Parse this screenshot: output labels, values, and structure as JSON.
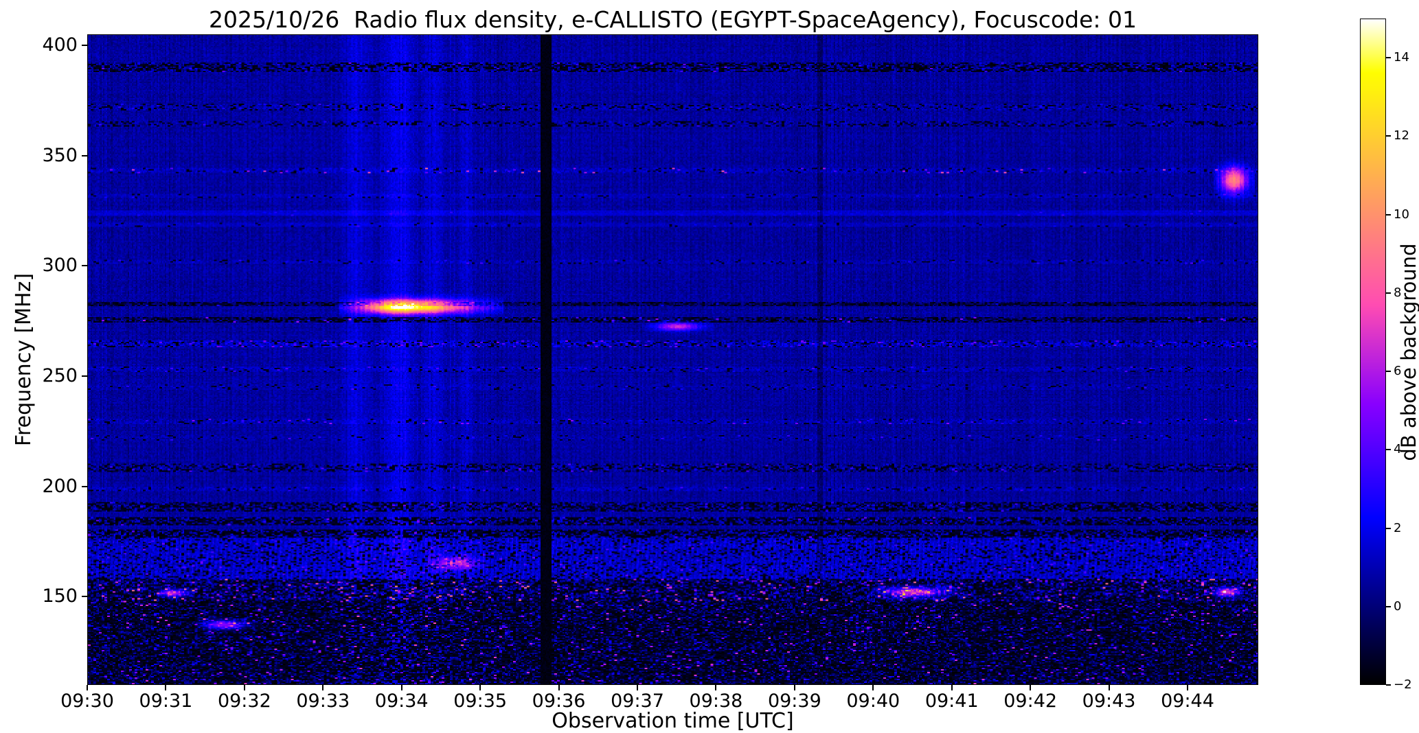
{
  "figure": {
    "background_color": "#ffffff",
    "text_color": "#000000"
  },
  "chart_data": {
    "type": "heatmap",
    "variant": "radio-spectrogram",
    "title": "2025/10/26  Radio flux density, e-CALLISTO (EGYPT-SpaceAgency), Focuscode: 01",
    "xlabel": "Observation time [UTC]",
    "ylabel": "Frequency [MHz]",
    "x_start": "09:30:00",
    "x_end": "09:44:54",
    "duration_s": 894,
    "tick_interval_s": 60,
    "x_ticks": [
      "09:30",
      "09:31",
      "09:32",
      "09:33",
      "09:34",
      "09:35",
      "09:36",
      "09:37",
      "09:38",
      "09:39",
      "09:40",
      "09:41",
      "09:42",
      "09:43",
      "09:44"
    ],
    "ylim": [
      110,
      405
    ],
    "y_ticks": [
      400,
      350,
      300,
      250,
      200,
      150
    ],
    "grid": false,
    "colorbar": {
      "label": "dB above background",
      "colormap": "gnuplot2",
      "vmin": -2,
      "vmax": 15,
      "ticks": [
        {
          "v": 14,
          "label": "14"
        },
        {
          "v": 12,
          "label": "12"
        },
        {
          "v": 10,
          "label": "10"
        },
        {
          "v": 8,
          "label": "8"
        },
        {
          "v": 6,
          "label": "6"
        },
        {
          "v": 4,
          "label": "4"
        },
        {
          "v": 2,
          "label": "2"
        },
        {
          "v": 0,
          "label": "0"
        },
        {
          "v": -2,
          "label": "−2"
        }
      ]
    },
    "background": {
      "base_db": 0.6,
      "noise_db": 0.5,
      "column_noise_db": 0.3
    },
    "bands": [
      {
        "f0": 388,
        "f1": 392.5,
        "base": 0.5,
        "noise": 1.1,
        "darkp": 0.45,
        "brightp": 0.05,
        "bmin": 2,
        "bmax": 4.5
      },
      {
        "f0": 371,
        "f1": 374,
        "base": 0.75,
        "noise": 0.8,
        "darkp": 0.2,
        "brightp": 0.05,
        "bmin": 1.5,
        "bmax": 3.5
      },
      {
        "f0": 363,
        "f1": 366,
        "base": 0.75,
        "noise": 0.8,
        "darkp": 0.25,
        "brightp": 0.05,
        "bmin": 1.5,
        "bmax": 3.5
      },
      {
        "f0": 342,
        "f1": 344.5,
        "base": 1.1,
        "noise": 0.7,
        "darkp": 0.1,
        "brightp": 0.05,
        "bmin": 2,
        "bmax": 8.5
      },
      {
        "f0": 331,
        "f1": 333,
        "base": 1.0,
        "noise": 0.5,
        "darkp": 0.08,
        "brightp": 0.02,
        "bmin": 1.5,
        "bmax": 3
      },
      {
        "f0": 323,
        "f1": 325.5,
        "base": 1.5,
        "noise": 0.4,
        "darkp": 0,
        "brightp": 0.02,
        "bmin": 2,
        "bmax": 3.5
      },
      {
        "f0": 318,
        "f1": 320,
        "base": 1.2,
        "noise": 0.4,
        "darkp": 0.05,
        "brightp": 0.02,
        "bmin": 1.5,
        "bmax": 3
      },
      {
        "f0": 301,
        "f1": 303,
        "base": 0.9,
        "noise": 0.6,
        "darkp": 0.1,
        "brightp": 0.03,
        "bmin": 1.5,
        "bmax": 4
      },
      {
        "f0": 281.5,
        "f1": 283.5,
        "base": -0.3,
        "noise": 0.9,
        "darkp": 0.4,
        "brightp": 0.03,
        "bmin": 1,
        "bmax": 3
      },
      {
        "f0": 274,
        "f1": 276.5,
        "base": 0.0,
        "noise": 1.0,
        "darkp": 0.45,
        "brightp": 0.06,
        "bmin": 2,
        "bmax": 6
      },
      {
        "f0": 263,
        "f1": 266.5,
        "base": 1.0,
        "noise": 1.1,
        "darkp": 0.15,
        "brightp": 0.15,
        "bmin": 2,
        "bmax": 5
      },
      {
        "f0": 252,
        "f1": 254.5,
        "base": 0.9,
        "noise": 0.7,
        "darkp": 0.08,
        "brightp": 0.05,
        "bmin": 1.5,
        "bmax": 4
      },
      {
        "f0": 244,
        "f1": 246,
        "base": 0.85,
        "noise": 0.6,
        "darkp": 0.08,
        "brightp": 0.03,
        "bmin": 1.5,
        "bmax": 3.5
      },
      {
        "f0": 228.5,
        "f1": 231,
        "base": 0.9,
        "noise": 0.7,
        "darkp": 0.08,
        "brightp": 0.05,
        "bmin": 2,
        "bmax": 5.5
      },
      {
        "f0": 221,
        "f1": 223,
        "base": 0.85,
        "noise": 0.6,
        "darkp": 0.06,
        "brightp": 0.03,
        "bmin": 1.5,
        "bmax": 4
      },
      {
        "f0": 206.5,
        "f1": 210,
        "base": 0.6,
        "noise": 1.0,
        "darkp": 0.3,
        "brightp": 0.07,
        "bmin": 1.5,
        "bmax": 4.5
      },
      {
        "f0": 197.5,
        "f1": 199.5,
        "base": 0.9,
        "noise": 0.7,
        "darkp": 0.1,
        "brightp": 0.05,
        "bmin": 1.5,
        "bmax": 4
      },
      {
        "f0": 188.5,
        "f1": 192.5,
        "base": 0.4,
        "noise": 1.2,
        "darkp": 0.45,
        "brightp": 0.1,
        "bmin": 1.5,
        "bmax": 4
      },
      {
        "f0": 182.5,
        "f1": 186,
        "base": 0.5,
        "noise": 1.4,
        "darkp": 0.5,
        "brightp": 0.06,
        "bmin": 1.5,
        "bmax": 5
      },
      {
        "f0": 176.5,
        "f1": 180.5,
        "base": 0.6,
        "noise": 1.4,
        "darkp": 0.55,
        "brightp": 0.06,
        "bmin": 1.5,
        "bmax": 5
      },
      {
        "f0": 158,
        "f1": 176.5,
        "base": 1.4,
        "noise": 0.8,
        "darkp": 0.18,
        "brightp": 0.05,
        "bmin": 2,
        "bmax": 4.5,
        "stripes": 0.5
      },
      {
        "f0": 148,
        "f1": 158,
        "base": 0.3,
        "noise": 1.4,
        "darkp": 0.45,
        "brightp": 0.16,
        "bmin": 2.5,
        "bmax": 9
      },
      {
        "f0": 110,
        "f1": 148,
        "base": -0.2,
        "noise": 1.3,
        "darkp": 0.55,
        "brightp": 0.11,
        "bmin": 2,
        "bmax": 7
      }
    ],
    "events": [
      {
        "type": "bright_column",
        "t": 205,
        "width": 12,
        "add": 0.9,
        "note": "faint full-band enhancement 09:33:25"
      },
      {
        "type": "bright_column",
        "t": 238,
        "width": 16,
        "add": 1.2,
        "note": "full-band enhancement 09:33:58"
      },
      {
        "type": "bright_column",
        "t": 265,
        "width": 10,
        "add": 0.7,
        "note": "enhancement 09:34:25"
      },
      {
        "type": "bright_column",
        "t": 290,
        "width": 7,
        "add": 0.5,
        "note": "enhancement 09:34:50"
      },
      {
        "type": "bright_column",
        "t": 245,
        "width": 150,
        "add": 0.2,
        "note": "broad brightening 09:33-09:36"
      },
      {
        "type": "dark_column",
        "t": 350,
        "width": 8,
        "set": -1.7,
        "note": "black data-gap stripe ~09:35:50"
      },
      {
        "type": "dark_column",
        "t": 560,
        "width": 4,
        "add": -0.8,
        "note": "faint dark stripe ~09:39:20"
      },
      {
        "type": "dark_column",
        "t": 756,
        "width": 3,
        "add": -0.5,
        "note": "very faint dark stripe ~09:42:36"
      }
    ],
    "bursts": [
      {
        "f": 281.5,
        "sf": 2.2,
        "t0": 192,
        "t1": 318,
        "tp": 240,
        "peak": 14,
        "dash": 0.35,
        "note": "bright narrowband emission ~281 MHz 09:33:12-09:35:18, white-hot peak ~09:34"
      },
      {
        "f": 339,
        "sf": 4,
        "t0": 860,
        "t1": 892,
        "tp": 876,
        "peak": 9,
        "dash": 0.5,
        "note": "pink RFI cluster ~335-343 MHz near 09:44:30"
      },
      {
        "f": 137,
        "sf": 1.4,
        "t0": 82,
        "t1": 128,
        "tp": 103,
        "peak": 7,
        "dash": 0.4,
        "note": "magenta streak ~137 MHz near 09:31:40"
      },
      {
        "f": 272.5,
        "sf": 1.3,
        "t0": 425,
        "t1": 478,
        "tp": 450,
        "peak": 6,
        "dash": 0.6,
        "note": "bright dashes ~272 MHz 09:37-09:38"
      },
      {
        "f": 152,
        "sf": 1.6,
        "t0": 598,
        "t1": 668,
        "tp": 630,
        "peak": 8,
        "dash": 0.55,
        "note": "pink speckle run ~152 MHz 09:40-09:41"
      },
      {
        "f": 151.5,
        "sf": 1.2,
        "t0": 52,
        "t1": 82,
        "tp": 64,
        "peak": 8,
        "dash": 0.5,
        "note": "pink dash ~152 MHz near 09:31"
      },
      {
        "f": 165,
        "sf": 2.0,
        "t0": 258,
        "t1": 305,
        "tp": 280,
        "peak": 5,
        "dash": 0.3,
        "note": "bright blue blob ~165 MHz near 09:34:40"
      },
      {
        "f": 152,
        "sf": 1.4,
        "t0": 858,
        "t1": 884,
        "tp": 870,
        "peak": 9,
        "dash": 0.4,
        "note": "bright pink ~152 MHz near 09:44:30"
      }
    ]
  }
}
